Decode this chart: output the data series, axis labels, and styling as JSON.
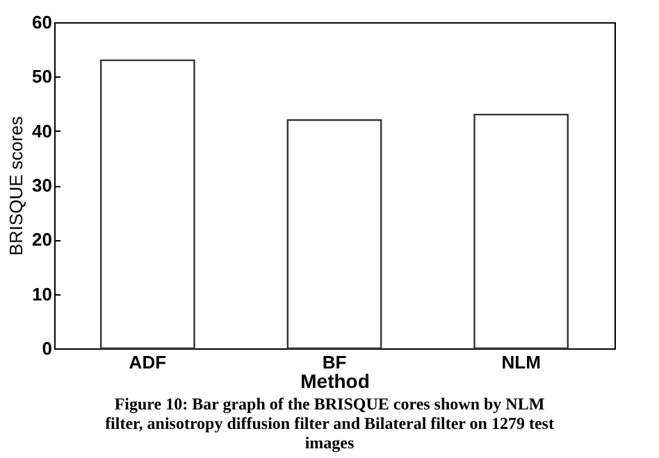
{
  "chart_data": {
    "type": "bar",
    "xlabel": "Method",
    "ylabel": "BRISQUE scores",
    "categories": [
      "ADF",
      "BF",
      "NLM"
    ],
    "values": [
      53,
      42,
      43
    ],
    "color": "#ffffff",
    "ylim": [
      0,
      60
    ],
    "yticks": [
      0,
      10,
      20,
      30,
      40,
      50,
      60
    ],
    "grid": false,
    "annotations": [
      "Figure 10: Bar graph of the BRISQUE cores shown by NLM filter, anisotropy diffusion filter and Bilateral filter on 1279 test images"
    ]
  }
}
